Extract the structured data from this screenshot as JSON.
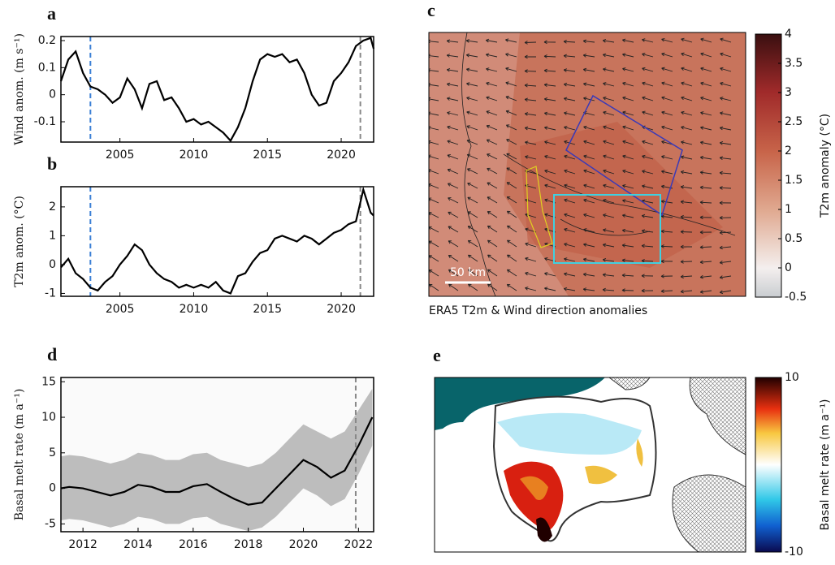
{
  "chart_data": [
    {
      "type": "line",
      "title": "a",
      "ylabel": "Wind anom. (m s⁻¹)",
      "xlim": [
        2001,
        2022.2
      ],
      "ylim": [
        -0.175,
        0.215
      ],
      "xticks": [
        2005,
        2010,
        2015,
        2020
      ],
      "yticks": [
        -0.1,
        0,
        0.1,
        0.2
      ],
      "x": [
        2001,
        2001.5,
        2002,
        2002.5,
        2003,
        2003.5,
        2004,
        2004.5,
        2005,
        2005.5,
        2006,
        2006.5,
        2007,
        2007.5,
        2008,
        2008.5,
        2009,
        2009.5,
        2010,
        2010.5,
        2011,
        2011.5,
        2012,
        2012.5,
        2013,
        2013.5,
        2014,
        2014.5,
        2015,
        2015.5,
        2016,
        2016.5,
        2017,
        2017.5,
        2018,
        2018.5,
        2019,
        2019.5,
        2020,
        2020.5,
        2021,
        2021.5,
        2022,
        2022.2
      ],
      "series": [
        {
          "color": "#000000",
          "values": [
            0.05,
            0.13,
            0.16,
            0.08,
            0.03,
            0.02,
            0.0,
            -0.03,
            -0.01,
            0.06,
            0.02,
            -0.05,
            0.04,
            0.05,
            -0.02,
            -0.01,
            -0.05,
            -0.1,
            -0.09,
            -0.11,
            -0.1,
            -0.12,
            -0.14,
            -0.17,
            -0.12,
            -0.05,
            0.05,
            0.13,
            0.15,
            0.14,
            0.15,
            0.12,
            0.13,
            0.08,
            0.0,
            -0.04,
            -0.03,
            0.05,
            0.08,
            0.12,
            0.18,
            0.2,
            0.21,
            0.17
          ]
        }
      ],
      "markers": [
        {
          "x": 2003,
          "color": "#3a7fd5"
        },
        {
          "x": 2021.3,
          "color": "#888888"
        }
      ]
    },
    {
      "type": "line",
      "title": "b",
      "ylabel": "T2m anom. (°C)",
      "xlim": [
        2001,
        2022.2
      ],
      "ylim": [
        -1.1,
        2.7
      ],
      "xticks": [
        2005,
        2010,
        2015,
        2020
      ],
      "yticks": [
        -1,
        0,
        1,
        2
      ],
      "x": [
        2001,
        2001.5,
        2002,
        2002.5,
        2003,
        2003.5,
        2004,
        2004.5,
        2005,
        2005.5,
        2006,
        2006.5,
        2007,
        2007.5,
        2008,
        2008.5,
        2009,
        2009.5,
        2010,
        2010.5,
        2011,
        2011.5,
        2012,
        2012.5,
        2013,
        2013.5,
        2014,
        2014.5,
        2015,
        2015.5,
        2016,
        2016.5,
        2017,
        2017.5,
        2018,
        2018.5,
        2019,
        2019.5,
        2020,
        2020.5,
        2021,
        2021.5,
        2022,
        2022.2
      ],
      "series": [
        {
          "color": "#000000",
          "values": [
            -0.1,
            0.2,
            -0.3,
            -0.5,
            -0.8,
            -0.9,
            -0.6,
            -0.4,
            0.0,
            0.3,
            0.7,
            0.5,
            0.0,
            -0.3,
            -0.5,
            -0.6,
            -0.8,
            -0.7,
            -0.8,
            -0.7,
            -0.8,
            -0.6,
            -0.9,
            -1.0,
            -0.4,
            -0.3,
            0.1,
            0.4,
            0.5,
            0.9,
            1.0,
            0.9,
            0.8,
            1.0,
            0.9,
            0.7,
            0.9,
            1.1,
            1.2,
            1.4,
            1.5,
            2.6,
            1.8,
            1.7
          ]
        }
      ],
      "markers": [
        {
          "x": 2003,
          "color": "#3a7fd5"
        },
        {
          "x": 2021.3,
          "color": "#888888"
        }
      ]
    },
    {
      "type": "colorbar",
      "title": "c",
      "caption": "ERA5 T2m & Wind direction anomalies",
      "scale_bar": "50 km",
      "ylabel": "T2m anomaly (°C)",
      "ylim": [
        -0.5,
        4
      ],
      "yticks": [
        -0.5,
        0,
        0.5,
        1,
        1.5,
        2,
        2.5,
        3,
        3.5,
        4
      ]
    },
    {
      "type": "band",
      "title": "d",
      "ylabel": "Basal melt rate (m a⁻¹)",
      "xlim": [
        2011.2,
        2022.55
      ],
      "ylim": [
        -6.1,
        15.6
      ],
      "xticks": [
        2012,
        2014,
        2016,
        2018,
        2020,
        2022
      ],
      "yticks": [
        -5,
        0,
        5,
        10,
        15
      ],
      "x": [
        2011.2,
        2011.5,
        2012,
        2012.5,
        2013,
        2013.5,
        2014,
        2014.5,
        2015,
        2015.5,
        2016,
        2016.5,
        2017,
        2017.5,
        2018,
        2018.5,
        2019,
        2019.5,
        2020,
        2020.5,
        2021,
        2021.5,
        2022,
        2022.5
      ],
      "series": [
        {
          "color": "#000000",
          "values": [
            0,
            0.2,
            0,
            -0.5,
            -1,
            -0.5,
            0.5,
            0.2,
            -0.5,
            -0.5,
            0.3,
            0.6,
            -0.5,
            -1.5,
            -2.3,
            -2,
            0,
            2,
            4,
            3,
            1.5,
            2.5,
            6,
            10
          ]
        }
      ],
      "band": {
        "color": "#bdbdbd",
        "lower": [
          -4.5,
          -4.3,
          -4.5,
          -5,
          -5.5,
          -5,
          -4,
          -4.3,
          -5,
          -5,
          -4.2,
          -4,
          -5,
          -5.5,
          -6,
          -5.5,
          -4,
          -2,
          0,
          -1,
          -2.5,
          -1.5,
          2,
          6
        ],
        "upper": [
          4.5,
          4.7,
          4.5,
          4,
          3.5,
          4,
          5,
          4.7,
          4,
          4,
          4.8,
          5,
          4,
          3.5,
          3,
          3.5,
          5,
          7,
          9,
          8,
          7,
          8,
          11,
          14
        ]
      },
      "markers": [
        {
          "x": 2021.9,
          "color": "#888888"
        }
      ]
    },
    {
      "type": "colorbar",
      "title": "e",
      "ylabel": "Basal melt rate (m a⁻¹)",
      "ylim": [
        -10,
        10
      ],
      "yticks": [
        -10,
        10
      ]
    }
  ]
}
